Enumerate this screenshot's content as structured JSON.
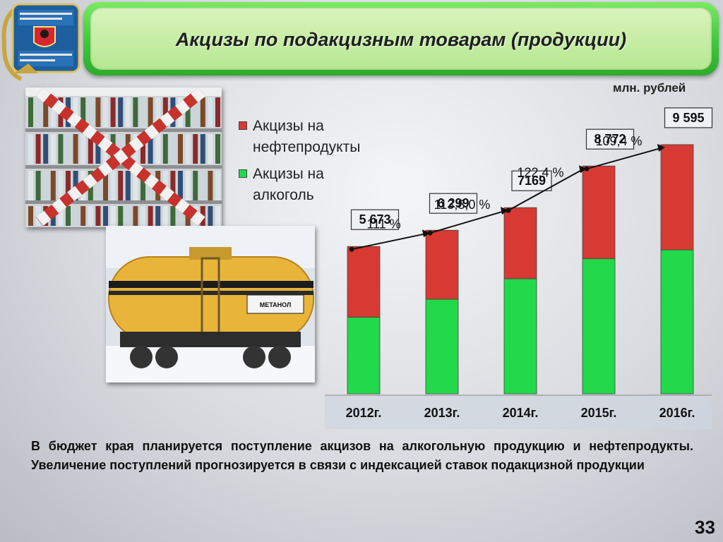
{
  "slide": {
    "title": "Акцизы по подакцизным товарам (продукции)",
    "units": "млн. рублей",
    "footer": "В бюджет края планируется поступление акцизов на алкогольную продукцию и нефтепродукты.  Увеличение поступлений прогнозируется в связи  с индексацией ставок подакцизной продукции",
    "page_number": "33",
    "emblem_text": "МИНИСТЕРСТВО ФИНАНСОВ ХАБАРОВСКОГО КРАЯ",
    "tank_plate_text": "МЕТАНОЛ",
    "colors": {
      "title_green": "#3cc93a",
      "bar_red": "#d63a33",
      "bar_green": "#22d94a"
    }
  },
  "chart_data": {
    "type": "bar",
    "stacked": true,
    "categories": [
      "2012г.",
      "2013г.",
      "2014г.",
      "2015г.",
      "2016г."
    ],
    "series": [
      {
        "name": "Акцизы на алкоголь",
        "color": "#22d94a",
        "values": [
          2950,
          3640,
          4430,
          5200,
          5540
        ]
      },
      {
        "name": "Акцизы на нефтепродукты",
        "color": "#d63a33",
        "values": [
          2723,
          2659,
          2739,
          3572,
          4055
        ]
      }
    ],
    "totals": [
      "5 673",
      "6 299",
      "7169",
      "8 772",
      "9 595"
    ],
    "total_values": [
      5673,
      6299,
      7169,
      8772,
      9595
    ],
    "growth_labels": [
      "111 %",
      "113,8,0 %",
      "122,4 %",
      "109,4 %"
    ],
    "ylim": [
      0,
      10000
    ],
    "legend_position": "top-left",
    "grid": false
  }
}
